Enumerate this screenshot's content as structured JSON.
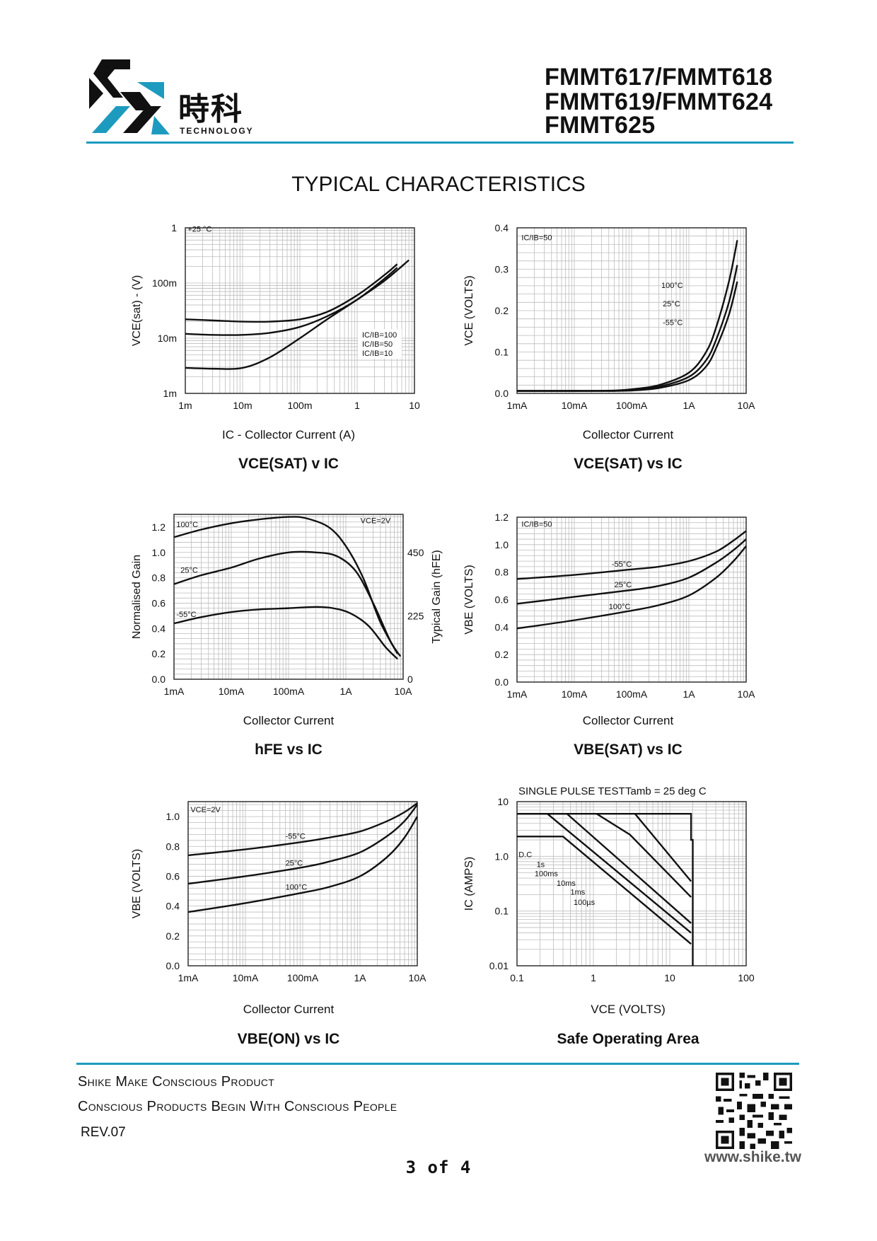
{
  "header": {
    "logo_cn": "時科",
    "logo_en": "TECHNOLOGY",
    "part_lines": [
      "FMMT617/FMMT618",
      "FMMT619/FMMT624",
      "FMMT625"
    ],
    "brand_color": "#1d9bbf"
  },
  "main_title": "TYPICAL CHARACTERISTICS",
  "chart_data": [
    {
      "id": "c1",
      "type": "line",
      "scale_x": "log",
      "scale_y": "log",
      "ylabel": "VCE(sat) - (V)",
      "xlabel": "IC - Collector Current (A)",
      "caption_main": "VCE(SAT)",
      "caption_tail": " v IC",
      "xlim": [
        0.001,
        10
      ],
      "ylim": [
        0.001,
        1
      ],
      "x_ticks": [
        {
          "v": 0.001,
          "t": "1m"
        },
        {
          "v": 0.01,
          "t": "10m"
        },
        {
          "v": 0.1,
          "t": "100m"
        },
        {
          "v": 1,
          "t": "1"
        },
        {
          "v": 10,
          "t": "10"
        }
      ],
      "y_ticks": [
        {
          "v": 0.001,
          "t": "1m"
        },
        {
          "v": 0.01,
          "t": "10m"
        },
        {
          "v": 0.1,
          "t": "100m"
        },
        {
          "v": 1,
          "t": "1"
        }
      ],
      "annotations": [
        {
          "x": 0.0011,
          "y": 0.85,
          "t": "+25 °C"
        }
      ],
      "legend": [
        "IC/IB=100",
        "IC/IB=50",
        "IC/IB=10"
      ],
      "series": [
        {
          "name": "IC/IB=100",
          "x": [
            0.001,
            0.003,
            0.01,
            0.03,
            0.1,
            0.3,
            1,
            3,
            5
          ],
          "y": [
            0.022,
            0.021,
            0.02,
            0.02,
            0.022,
            0.03,
            0.06,
            0.14,
            0.22
          ]
        },
        {
          "name": "IC/IB=50",
          "x": [
            0.001,
            0.003,
            0.01,
            0.03,
            0.1,
            0.3,
            1,
            3,
            5
          ],
          "y": [
            0.012,
            0.0115,
            0.0115,
            0.0125,
            0.016,
            0.025,
            0.05,
            0.12,
            0.19
          ]
        },
        {
          "name": "IC/IB=10",
          "x": [
            0.001,
            0.003,
            0.01,
            0.03,
            0.1,
            0.3,
            1,
            3,
            8
          ],
          "y": [
            0.0029,
            0.0028,
            0.0029,
            0.0045,
            0.01,
            0.022,
            0.05,
            0.11,
            0.26
          ]
        }
      ]
    },
    {
      "id": "c2",
      "type": "line",
      "scale_x": "log",
      "scale_y": "linear",
      "ylabel": "VCE (VOLTS)",
      "xlabel": "Collector Current",
      "caption_main": "VCE(SAT)",
      "caption_tail": " vs IC",
      "xlim": [
        0.001,
        10
      ],
      "ylim": [
        0,
        0.4
      ],
      "x_ticks": [
        {
          "v": 0.001,
          "t": "1mA"
        },
        {
          "v": 0.01,
          "t": "10mA"
        },
        {
          "v": 0.1,
          "t": "100mA"
        },
        {
          "v": 1,
          "t": "1A"
        },
        {
          "v": 10,
          "t": "10A"
        }
      ],
      "y_ticks": [
        {
          "v": 0,
          "t": "0.0"
        },
        {
          "v": 0.1,
          "t": "0.1"
        },
        {
          "v": 0.2,
          "t": "0.2"
        },
        {
          "v": 0.3,
          "t": "0.3"
        },
        {
          "v": 0.4,
          "t": "0.4"
        }
      ],
      "annotations": [
        {
          "x": 0.0012,
          "y": 0.37,
          "t": "IC/IB=50"
        },
        {
          "x": 0.33,
          "y": 0.255,
          "t": "100°C"
        },
        {
          "x": 0.35,
          "y": 0.21,
          "t": "25°C"
        },
        {
          "x": 0.35,
          "y": 0.165,
          "t": "-55°C"
        }
      ],
      "series": [
        {
          "name": "100°C",
          "x": [
            0.001,
            0.01,
            0.05,
            0.1,
            0.3,
            1,
            2,
            3,
            5,
            7
          ],
          "y": [
            0.006,
            0.006,
            0.007,
            0.01,
            0.02,
            0.05,
            0.1,
            0.16,
            0.27,
            0.37
          ]
        },
        {
          "name": "25°C",
          "x": [
            0.001,
            0.01,
            0.05,
            0.1,
            0.3,
            1,
            2,
            3,
            5,
            7
          ],
          "y": [
            0.006,
            0.006,
            0.006,
            0.008,
            0.016,
            0.04,
            0.08,
            0.13,
            0.22,
            0.31
          ]
        },
        {
          "name": "-55°C",
          "x": [
            0.001,
            0.01,
            0.05,
            0.1,
            0.3,
            1,
            2,
            3,
            5,
            7
          ],
          "y": [
            0.006,
            0.006,
            0.006,
            0.007,
            0.013,
            0.032,
            0.065,
            0.11,
            0.19,
            0.27
          ]
        }
      ]
    },
    {
      "id": "c3",
      "type": "line",
      "scale_x": "log",
      "scale_y": "linear",
      "ylabel": "Normalised Gain",
      "ylabel_right": "Typical Gain  (hFE)",
      "xlabel": "Collector Current",
      "caption_main": "hFE",
      "caption_tail": " vs IC",
      "xlim": [
        0.001,
        10
      ],
      "ylim": [
        0,
        1.3
      ],
      "x_ticks": [
        {
          "v": 0.001,
          "t": "1mA"
        },
        {
          "v": 0.01,
          "t": "10mA"
        },
        {
          "v": 0.1,
          "t": "100mA"
        },
        {
          "v": 1,
          "t": "1A"
        },
        {
          "v": 10,
          "t": "10A"
        }
      ],
      "y_ticks": [
        {
          "v": 0,
          "t": "0.0"
        },
        {
          "v": 0.2,
          "t": "0.2"
        },
        {
          "v": 0.4,
          "t": "0.4"
        },
        {
          "v": 0.6,
          "t": "0.6"
        },
        {
          "v": 0.8,
          "t": "0.8"
        },
        {
          "v": 1.0,
          "t": "1.0"
        },
        {
          "v": 1.2,
          "t": "1.2"
        }
      ],
      "y2_ticks": [
        {
          "v": 0,
          "t": "0"
        },
        {
          "v": 0.5,
          "t": "225"
        },
        {
          "v": 1.0,
          "t": "450"
        }
      ],
      "annotations": [
        {
          "x": 0.0011,
          "y": 1.2,
          "t": "100°C"
        },
        {
          "x": 0.0013,
          "y": 0.84,
          "t": "25°C"
        },
        {
          "x": 0.0011,
          "y": 0.49,
          "t": "-55°C"
        },
        {
          "x": 1.8,
          "y": 1.23,
          "t": "VCE=2V"
        }
      ],
      "series": [
        {
          "name": "100°C",
          "x": [
            0.001,
            0.003,
            0.01,
            0.03,
            0.1,
            0.2,
            0.5,
            1,
            2,
            4,
            8
          ],
          "y": [
            1.12,
            1.18,
            1.23,
            1.26,
            1.28,
            1.27,
            1.2,
            1.05,
            0.8,
            0.45,
            0.2
          ]
        },
        {
          "name": "25°C",
          "x": [
            0.001,
            0.003,
            0.01,
            0.03,
            0.1,
            0.3,
            0.7,
            1.5,
            3,
            6,
            9
          ],
          "y": [
            0.75,
            0.82,
            0.88,
            0.95,
            1.0,
            1.0,
            0.97,
            0.85,
            0.6,
            0.3,
            0.18
          ]
        },
        {
          "name": "-55°C",
          "x": [
            0.001,
            0.003,
            0.01,
            0.03,
            0.1,
            0.3,
            0.6,
            1.2,
            2.5,
            5,
            8
          ],
          "y": [
            0.44,
            0.49,
            0.53,
            0.55,
            0.56,
            0.57,
            0.56,
            0.52,
            0.42,
            0.25,
            0.16
          ]
        }
      ]
    },
    {
      "id": "c4",
      "type": "line",
      "scale_x": "log",
      "scale_y": "linear",
      "ylabel": "VBE (VOLTS)",
      "xlabel": "Collector Current",
      "caption_main": "VBE(SAT)",
      "caption_tail": " vs IC",
      "xlim": [
        0.001,
        10
      ],
      "ylim": [
        0,
        1.2
      ],
      "x_ticks": [
        {
          "v": 0.001,
          "t": "1mA"
        },
        {
          "v": 0.01,
          "t": "10mA"
        },
        {
          "v": 0.1,
          "t": "100mA"
        },
        {
          "v": 1,
          "t": "1A"
        },
        {
          "v": 10,
          "t": "10A"
        }
      ],
      "y_ticks": [
        {
          "v": 0,
          "t": "0.0"
        },
        {
          "v": 0.2,
          "t": "0.2"
        },
        {
          "v": 0.4,
          "t": "0.4"
        },
        {
          "v": 0.6,
          "t": "0.6"
        },
        {
          "v": 0.8,
          "t": "0.8"
        },
        {
          "v": 1.0,
          "t": "1.0"
        },
        {
          "v": 1.2,
          "t": "1.2"
        }
      ],
      "annotations": [
        {
          "x": 0.0012,
          "y": 1.13,
          "t": "IC/IB=50"
        },
        {
          "x": 0.045,
          "y": 0.84,
          "t": "-55°C"
        },
        {
          "x": 0.05,
          "y": 0.69,
          "t": "25°C"
        },
        {
          "x": 0.04,
          "y": 0.53,
          "t": "100°C"
        }
      ],
      "series": [
        {
          "name": "-55°C",
          "x": [
            0.001,
            0.01,
            0.1,
            0.3,
            1,
            3,
            6,
            10
          ],
          "y": [
            0.75,
            0.78,
            0.82,
            0.84,
            0.88,
            0.95,
            1.03,
            1.1
          ]
        },
        {
          "name": "25°C",
          "x": [
            0.001,
            0.01,
            0.1,
            0.3,
            1,
            3,
            6,
            10
          ],
          "y": [
            0.57,
            0.62,
            0.67,
            0.7,
            0.76,
            0.87,
            0.96,
            1.04
          ]
        },
        {
          "name": "100°C",
          "x": [
            0.001,
            0.01,
            0.1,
            0.3,
            1,
            3,
            6,
            10
          ],
          "y": [
            0.39,
            0.45,
            0.52,
            0.56,
            0.63,
            0.76,
            0.88,
            0.99
          ]
        }
      ]
    },
    {
      "id": "c5",
      "type": "line",
      "scale_x": "log",
      "scale_y": "linear",
      "ylabel": "VBE (VOLTS)",
      "xlabel": "Collector Current",
      "caption_main": "VBE(ON)",
      "caption_tail": " vs IC",
      "xlim": [
        0.001,
        10
      ],
      "ylim": [
        0,
        1.1
      ],
      "x_ticks": [
        {
          "v": 0.001,
          "t": "1mA"
        },
        {
          "v": 0.01,
          "t": "10mA"
        },
        {
          "v": 0.1,
          "t": "100mA"
        },
        {
          "v": 1,
          "t": "1A"
        },
        {
          "v": 10,
          "t": "10A"
        }
      ],
      "y_ticks": [
        {
          "v": 0,
          "t": "0.0"
        },
        {
          "v": 0.2,
          "t": "0.2"
        },
        {
          "v": 0.4,
          "t": "0.4"
        },
        {
          "v": 0.6,
          "t": "0.6"
        },
        {
          "v": 0.8,
          "t": "0.8"
        },
        {
          "v": 1.0,
          "t": "1.0"
        }
      ],
      "annotations": [
        {
          "x": 0.0011,
          "y": 1.03,
          "t": "VCE=2V"
        },
        {
          "x": 0.05,
          "y": 0.85,
          "t": "-55°C"
        },
        {
          "x": 0.05,
          "y": 0.67,
          "t": "25°C"
        },
        {
          "x": 0.05,
          "y": 0.51,
          "t": "100°C"
        }
      ],
      "series": [
        {
          "name": "-55°C",
          "x": [
            0.001,
            0.01,
            0.1,
            0.3,
            1,
            3,
            6,
            10
          ],
          "y": [
            0.74,
            0.78,
            0.83,
            0.86,
            0.9,
            0.97,
            1.03,
            1.09
          ]
        },
        {
          "name": "25°C",
          "x": [
            0.001,
            0.01,
            0.1,
            0.3,
            1,
            3,
            6,
            10
          ],
          "y": [
            0.55,
            0.6,
            0.66,
            0.7,
            0.76,
            0.87,
            0.97,
            1.08
          ]
        },
        {
          "name": "100°C",
          "x": [
            0.001,
            0.01,
            0.1,
            0.3,
            1,
            3,
            6,
            10
          ],
          "y": [
            0.36,
            0.42,
            0.49,
            0.53,
            0.6,
            0.73,
            0.86,
            1.0
          ]
        }
      ]
    },
    {
      "id": "c6",
      "type": "line",
      "scale_x": "log",
      "scale_y": "log",
      "title": "SINGLE PULSE TEST",
      "title2": "Tamb = 25 deg C",
      "ylabel": "IC (AMPS)",
      "xlabel": "VCE (VOLTS)",
      "caption_main": "Safe Operating Area",
      "caption_tail": "",
      "xlim": [
        0.1,
        100
      ],
      "ylim": [
        0.01,
        10
      ],
      "x_ticks": [
        {
          "v": 0.1,
          "t": "0.1"
        },
        {
          "v": 1,
          "t": "1"
        },
        {
          "v": 10,
          "t": "10"
        },
        {
          "v": 100,
          "t": "100"
        }
      ],
      "y_ticks": [
        {
          "v": 0.01,
          "t": "0.01"
        },
        {
          "v": 0.1,
          "t": "0.1"
        },
        {
          "v": 1,
          "t": "1.0"
        },
        {
          "v": 10,
          "t": "10"
        }
      ],
      "annotations": [
        {
          "x": 0.105,
          "y": 0.96,
          "t": "D.C"
        },
        {
          "x": 0.18,
          "y": 0.64,
          "t": "1s"
        },
        {
          "x": 0.17,
          "y": 0.43,
          "t": "100ms"
        },
        {
          "x": 0.33,
          "y": 0.29,
          "t": "10ms"
        },
        {
          "x": 0.5,
          "y": 0.2,
          "t": "1ms"
        },
        {
          "x": 0.55,
          "y": 0.13,
          "t": "100µs"
        }
      ],
      "series": [
        {
          "name": "D.C",
          "x": [
            0.1,
            0.4,
            19
          ],
          "y": [
            2.3,
            2.3,
            0.025
          ]
        },
        {
          "name": "1s",
          "x": [
            0.1,
            0.25,
            19
          ],
          "y": [
            6,
            6,
            0.04
          ]
        },
        {
          "name": "100ms",
          "x": [
            0.25,
            0.45,
            19
          ],
          "y": [
            6,
            6,
            0.06
          ]
        },
        {
          "name": "10ms",
          "x": [
            1.1,
            3,
            19
          ],
          "y": [
            6,
            2.5,
            0.18
          ]
        },
        {
          "name": "1ms",
          "x": [
            3.5,
            19
          ],
          "y": [
            6,
            0.35
          ]
        },
        {
          "name": "100µs",
          "x": [
            0.1,
            19,
            19,
            20,
            20
          ],
          "y": [
            6,
            6,
            2,
            2,
            0.01
          ]
        }
      ]
    }
  ],
  "footer": {
    "slogan_1": "Shike Make Conscious Product",
    "slogan_2": "Conscious Products Begin With Conscious People",
    "rev": "REV.07",
    "page": "3  of  4",
    "url": "www.shike.tw"
  }
}
